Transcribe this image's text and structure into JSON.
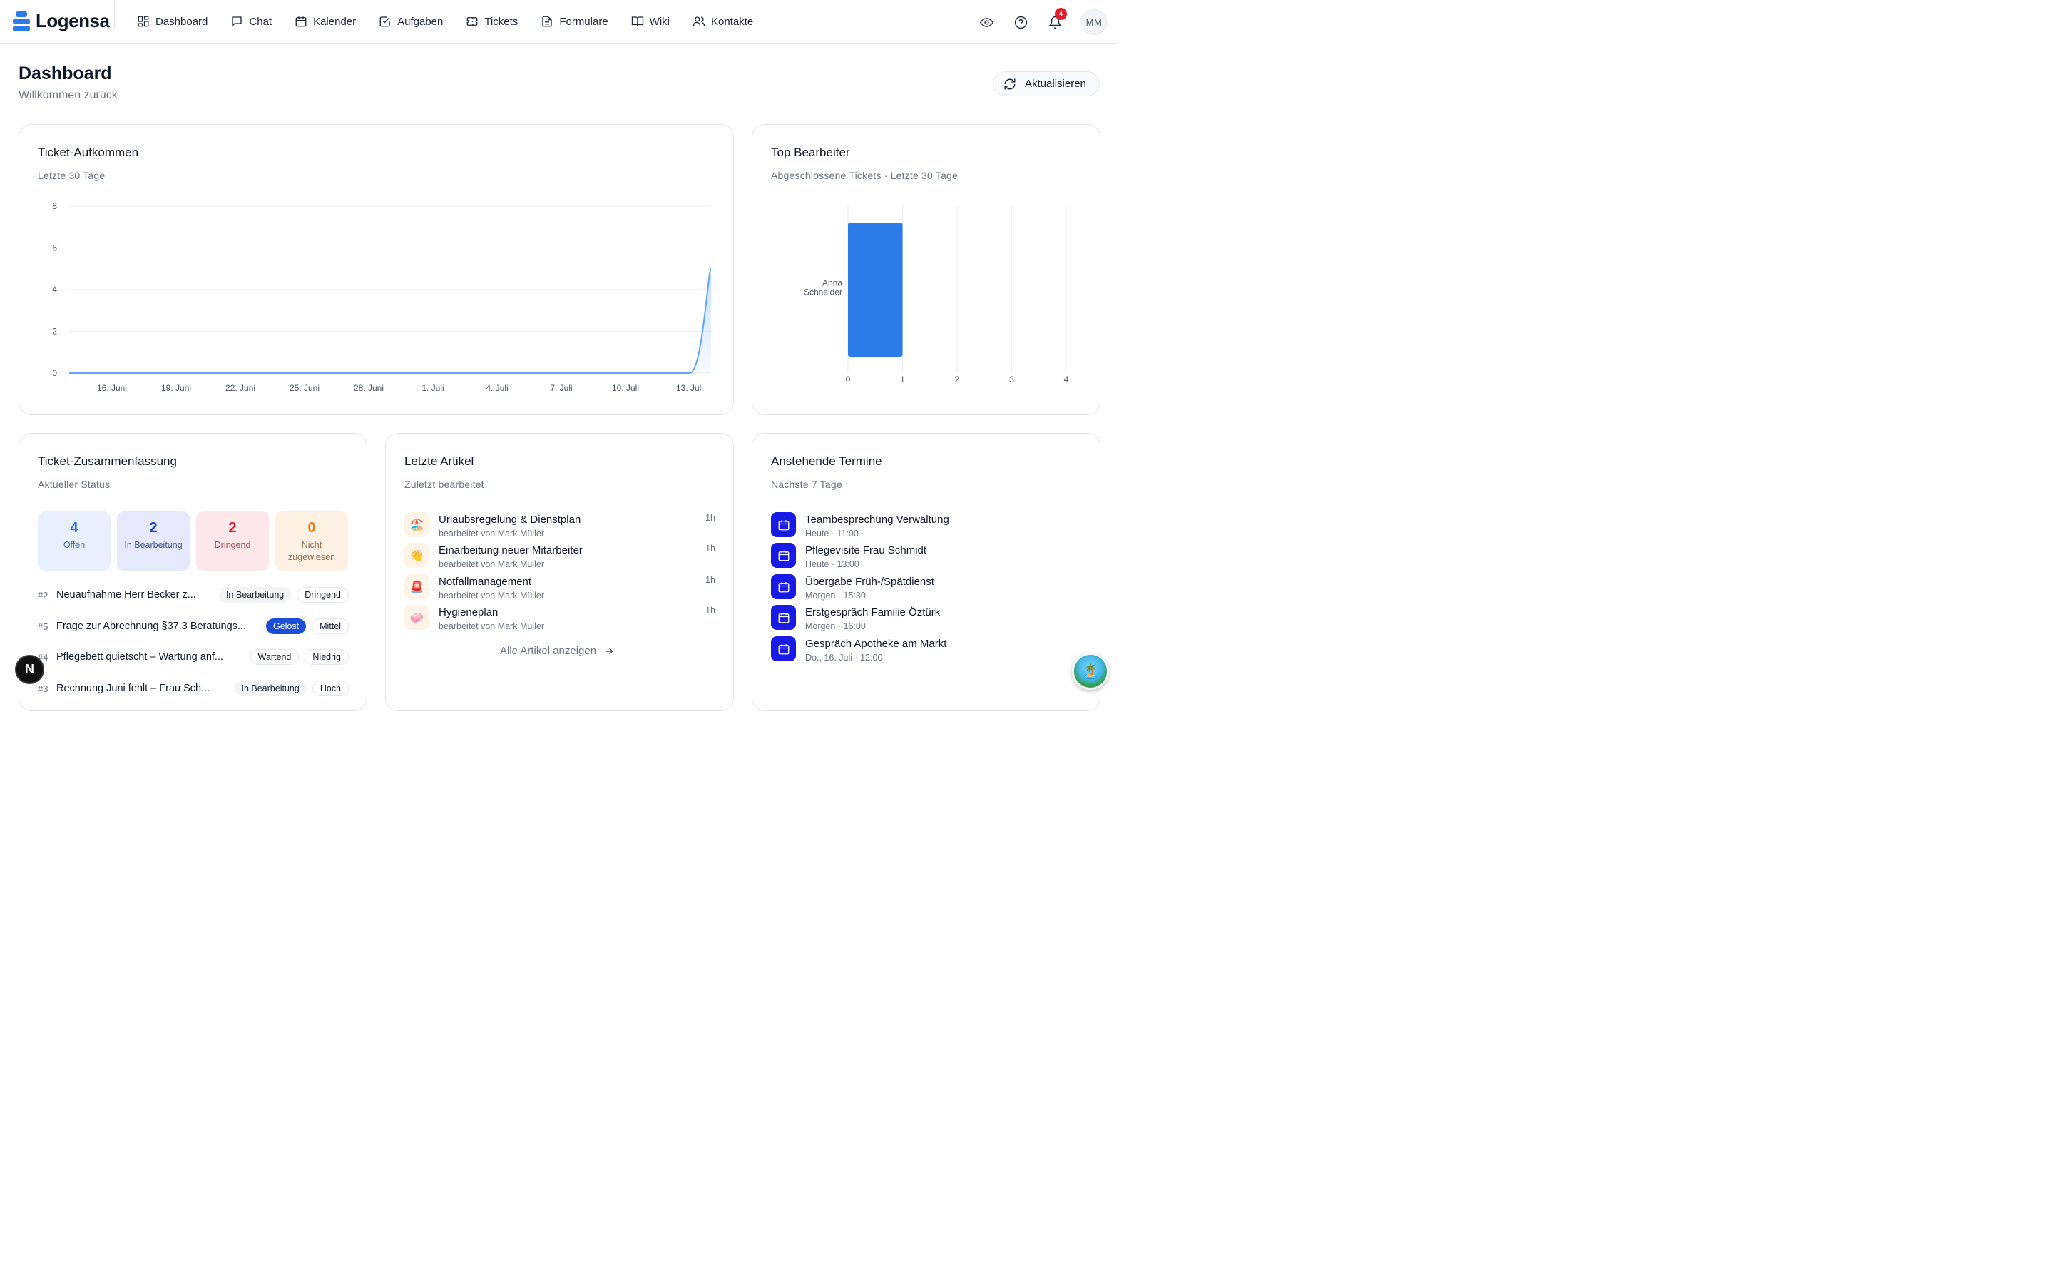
{
  "app": {
    "name": "Logensa"
  },
  "nav": [
    {
      "key": "dashboard",
      "label": "Dashboard",
      "icon": "dashboard-icon"
    },
    {
      "key": "chat",
      "label": "Chat",
      "icon": "chat-icon"
    },
    {
      "key": "calendar",
      "label": "Kalender",
      "icon": "calendar-icon"
    },
    {
      "key": "tasks",
      "label": "Aufgaben",
      "icon": "checkbox-icon"
    },
    {
      "key": "tickets",
      "label": "Tickets",
      "icon": "ticket-icon"
    },
    {
      "key": "forms",
      "label": "Formulare",
      "icon": "document-icon"
    },
    {
      "key": "wiki",
      "label": "Wiki",
      "icon": "book-icon"
    },
    {
      "key": "contacts",
      "label": "Kontakte",
      "icon": "users-icon"
    }
  ],
  "topbar": {
    "notifications_count": "4",
    "avatar_initials": "MM"
  },
  "header": {
    "title": "Dashboard",
    "subtitle": "Willkommen zurück",
    "refresh_label": "Aktualisieren"
  },
  "ticket_volume": {
    "title": "Ticket-Aufkommen",
    "subtitle": "Letzte 30 Tage"
  },
  "top_agents": {
    "title": "Top Bearbeiter",
    "subtitle": "Abgeschlossene Tickets · Letzte 30 Tage"
  },
  "chart_data": [
    {
      "type": "area",
      "x_tick_labels": [
        "16. Juni",
        "19. Juni",
        "22. Juni",
        "25. Juni",
        "28. Juni",
        "1. Juli",
        "4. Juli",
        "7. Juli",
        "10. Juli",
        "13. Juli"
      ],
      "y_ticks": [
        0,
        2,
        4,
        6,
        8
      ],
      "ylim": [
        0,
        8
      ],
      "x": [
        "14. Juni",
        "15. Juni",
        "16. Juni",
        "17. Juni",
        "18. Juni",
        "19. Juni",
        "20. Juni",
        "21. Juni",
        "22. Juni",
        "23. Juni",
        "24. Juni",
        "25. Juni",
        "26. Juni",
        "27. Juni",
        "28. Juni",
        "29. Juni",
        "30. Juni",
        "1. Juli",
        "2. Juli",
        "3. Juli",
        "4. Juli",
        "5. Juli",
        "6. Juli",
        "7. Juli",
        "8. Juli",
        "9. Juli",
        "10. Juli",
        "11. Juli",
        "12. Juli",
        "13. Juli",
        "14. Juli"
      ],
      "values": [
        0,
        0,
        0,
        0,
        0,
        0,
        0,
        0,
        0,
        0,
        0,
        0,
        0,
        0,
        0,
        0,
        0,
        0,
        0,
        0,
        0,
        0,
        0,
        0,
        0,
        0,
        0,
        0,
        0,
        0,
        5
      ],
      "grid": true,
      "color": "#60a5fa"
    },
    {
      "type": "bar",
      "orientation": "horizontal",
      "categories": [
        "Anna Schneider"
      ],
      "values": [
        1
      ],
      "x_ticks": [
        0,
        1,
        2,
        3,
        4
      ],
      "xlim": [
        0,
        4
      ],
      "grid": true,
      "color": "#2b7be8"
    }
  ],
  "summary": {
    "title": "Ticket-Zusammenfassung",
    "subtitle": "Aktueller Status",
    "tiles": [
      {
        "count": "4",
        "label": "Offen"
      },
      {
        "count": "2",
        "label": "In Bearbeitung"
      },
      {
        "count": "2",
        "label": "Dringend"
      },
      {
        "count": "0",
        "label": "Nicht zugewiesen"
      }
    ],
    "tickets": [
      {
        "id": "#2",
        "title": "Neuaufnahme Herr Becker z...",
        "status": "In Bearbeitung",
        "priority": "Dringend"
      },
      {
        "id": "#5",
        "title": "Frage zur Abrechnung §37.3 Beratungs...",
        "status": "Gelöst",
        "priority": "Mittel"
      },
      {
        "id": "#4",
        "title": "Pflegebett quietscht – Wartung anf...",
        "status": "Wartend",
        "priority": "Niedrig"
      },
      {
        "id": "#3",
        "title": "Rechnung Juni fehlt – Frau Sch...",
        "status": "In Bearbeitung",
        "priority": "Hoch"
      }
    ]
  },
  "articles": {
    "title": "Letzte Artikel",
    "subtitle": "Zuletzt bearbeitet",
    "items": [
      {
        "icon": "🏖️",
        "title": "Urlaubsregelung & Dienstplan",
        "by": "bearbeitet von Mark Müller",
        "time": "1h"
      },
      {
        "icon": "👋",
        "title": "Einarbeitung neuer Mitarbeiter",
        "by": "bearbeitet von Mark Müller",
        "time": "1h"
      },
      {
        "icon": "🚨",
        "title": "Notfallmanagement",
        "by": "bearbeitet von Mark Müller",
        "time": "1h"
      },
      {
        "icon": "🧼",
        "title": "Hygieneplan",
        "by": "bearbeitet von Mark Müller",
        "time": "1h"
      }
    ],
    "all_link": "Alle Artikel anzeigen"
  },
  "events": {
    "title": "Anstehende Termine",
    "subtitle": "Nächste 7 Tage",
    "items": [
      {
        "title": "Teambesprechung Verwaltung",
        "when": "Heute · 11:00"
      },
      {
        "title": "Pflegevisite Frau Schmidt",
        "when": "Heute · 13:00"
      },
      {
        "title": "Übergabe Früh-/Spätdienst",
        "when": "Morgen · 15:30"
      },
      {
        "title": "Erstgespräch Familie Öztürk",
        "when": "Morgen · 16:00"
      },
      {
        "title": "Gespräch Apotheke am Markt",
        "when": "Do., 16. Juli · 12:00"
      }
    ]
  },
  "fab": {
    "letter": "N"
  }
}
